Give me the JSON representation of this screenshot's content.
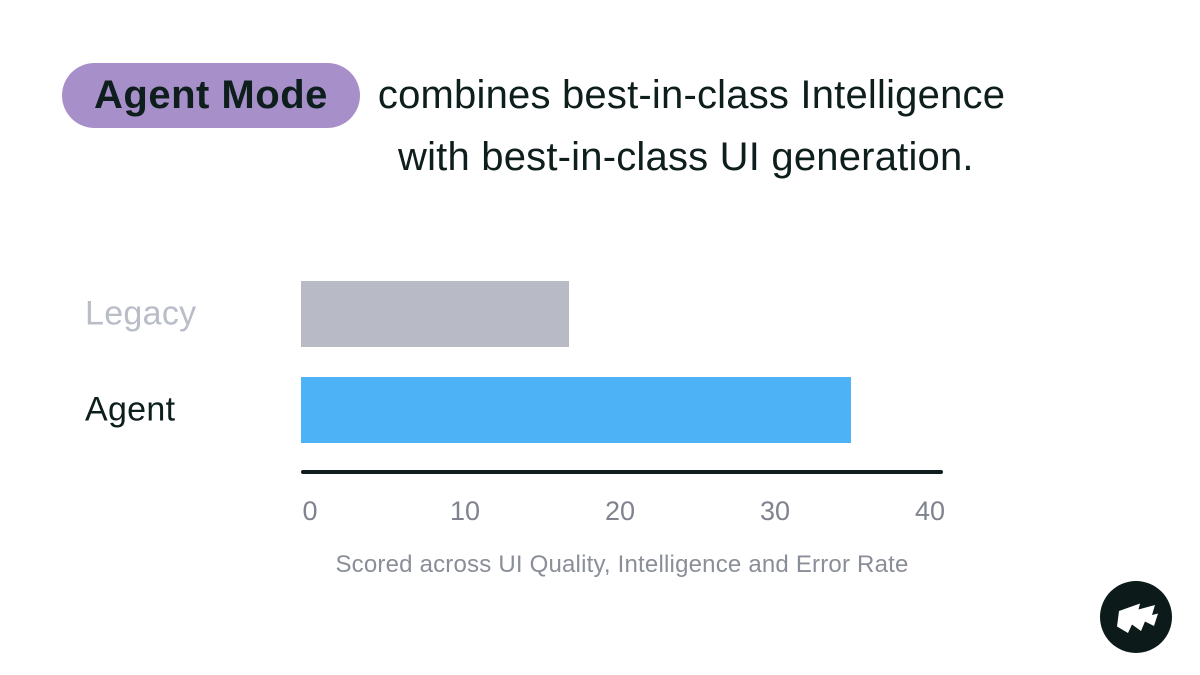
{
  "headline": {
    "badge": "Agent Mode",
    "line1": "combines best-in-class Intelligence",
    "line2": "with best-in-class UI generation."
  },
  "chart_data": {
    "type": "bar",
    "orientation": "horizontal",
    "categories": [
      "Legacy",
      "Agent"
    ],
    "values": [
      17.3,
      35.5
    ],
    "xlim": [
      0,
      40
    ],
    "x_ticks": [
      0,
      10,
      20,
      30,
      40
    ],
    "caption": "Scored across UI Quality, Intelligence and Error Rate",
    "bar_colors": [
      "#b8bac5",
      "#4db3f6"
    ],
    "category_label_colors": [
      "#b9bdc8",
      "#0d1e1c"
    ],
    "grid": false,
    "legend": false,
    "axis_color": "#0d1e1c",
    "tick_label_color": "#7f838e"
  },
  "colors": {
    "background": "#ffffff",
    "badge_bg": "#a78fca",
    "text_dark": "#0d1e1c",
    "caption_gray": "#8a8e98",
    "logo_bg": "#0c1a19",
    "logo_glyph": "#ffffff"
  },
  "logo": {
    "icon": "zigzag-flag-logo"
  }
}
